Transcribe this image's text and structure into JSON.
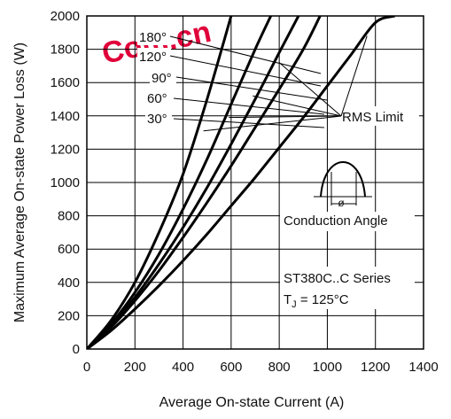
{
  "watermark": "Com.cn",
  "chart_data": {
    "type": "line",
    "title": "",
    "xlabel": "Average On-state Current (A)",
    "ylabel": "Maximum Average On-state Power Loss (W)",
    "xlim": [
      0,
      1400
    ],
    "ylim": [
      0,
      2000
    ],
    "xticks": [
      0,
      200,
      400,
      600,
      800,
      1000,
      1200,
      1400
    ],
    "yticks": [
      0,
      200,
      400,
      600,
      800,
      1000,
      1200,
      1400,
      1600,
      1800,
      2000
    ],
    "xtick_labels": [
      "0",
      "200",
      "400",
      "600",
      "800",
      "1000",
      "1200",
      "1400"
    ],
    "ytick_labels": [
      "0",
      "200",
      "400",
      "600",
      "800",
      "1000",
      "1200",
      "1400",
      "1600",
      "1800",
      "2000"
    ],
    "grid": true,
    "series": [
      {
        "name": "30°",
        "x": [
          0,
          100,
          200,
          300,
          400,
          500,
          600
        ],
        "y": [
          0,
          170,
          400,
          700,
          1050,
          1500,
          2000
        ]
      },
      {
        "name": "60°",
        "x": [
          0,
          100,
          200,
          300,
          400,
          500,
          600,
          700,
          765
        ],
        "y": [
          0,
          150,
          340,
          570,
          840,
          1140,
          1470,
          1800,
          2000
        ]
      },
      {
        "name": "90°",
        "x": [
          0,
          100,
          200,
          300,
          400,
          500,
          600,
          700,
          800,
          880
        ],
        "y": [
          0,
          140,
          310,
          510,
          730,
          970,
          1230,
          1500,
          1780,
          2000
        ]
      },
      {
        "name": "120°",
        "x": [
          0,
          100,
          200,
          300,
          400,
          500,
          600,
          700,
          800,
          900,
          970
        ],
        "y": [
          0,
          130,
          290,
          470,
          670,
          880,
          1100,
          1330,
          1560,
          1800,
          2000
        ]
      },
      {
        "name": "180°",
        "x": [
          0,
          100,
          200,
          300,
          400,
          500,
          600,
          700,
          800,
          900,
          1000,
          1100,
          1200,
          1280
        ],
        "y": [
          0,
          110,
          240,
          380,
          530,
          690,
          860,
          1030,
          1210,
          1390,
          1580,
          1770,
          1960,
          2000
        ]
      }
    ],
    "angle_labels": [
      "180°",
      "120°",
      "90°",
      "60°",
      "30°"
    ],
    "rms_limit_label": "RMS Limit",
    "rms_limit_points": [
      {
        "series": "30°",
        "x": 485,
        "y": 1310
      },
      {
        "series": "60°",
        "x": 590,
        "y": 1390
      },
      {
        "series": "90°",
        "x": 690,
        "y": 1520
      },
      {
        "series": "120°",
        "x": 800,
        "y": 1720
      },
      {
        "series": "180°",
        "x": 1165,
        "y": 1880
      }
    ],
    "conduction_angle_label": "Conduction Angle",
    "conduction_symbol": "ø",
    "series_label": "ST380C..C Series",
    "tj_label_prefix": "T",
    "tj_label_sub": "J",
    "tj_label_rest": " = 125°C"
  }
}
